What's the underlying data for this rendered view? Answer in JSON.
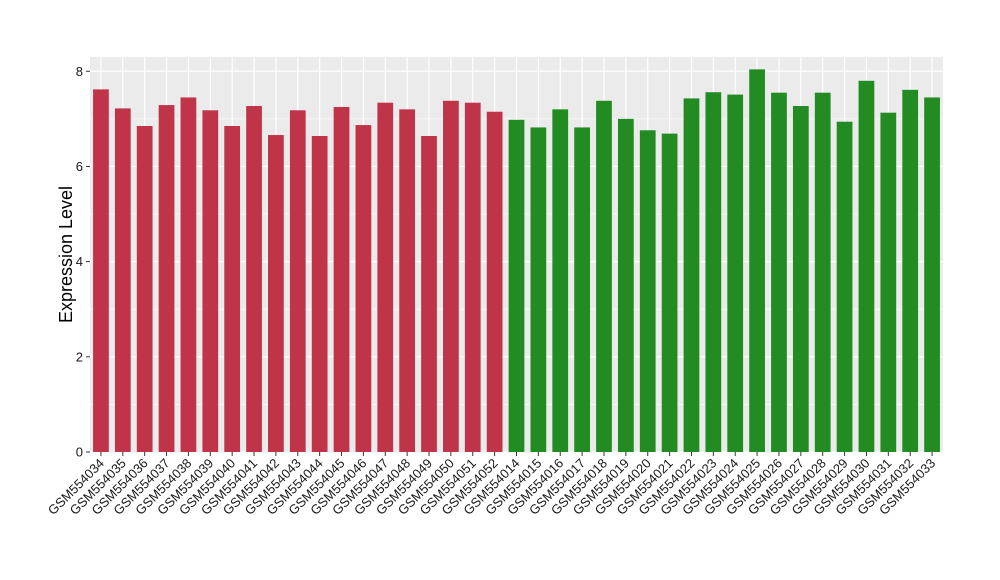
{
  "chart_data": {
    "type": "bar",
    "ylabel": "Expression Level",
    "xlabel": "",
    "ylim": [
      0,
      8.3
    ],
    "yticks": [
      0,
      2,
      4,
      6,
      8
    ],
    "grid": true,
    "legend": "none",
    "background": "#ebebeb",
    "group_colors": {
      "red": "#c0344a",
      "green": "#228b22"
    },
    "categories": [
      "GSM554034",
      "GSM554035",
      "GSM554036",
      "GSM554037",
      "GSM554038",
      "GSM554039",
      "GSM554040",
      "GSM554041",
      "GSM554042",
      "GSM554043",
      "GSM554044",
      "GSM554045",
      "GSM554046",
      "GSM554047",
      "GSM554048",
      "GSM554049",
      "GSM554050",
      "GSM554051",
      "GSM554052",
      "GSM554014",
      "GSM554015",
      "GSM554016",
      "GSM554017",
      "GSM554018",
      "GSM554019",
      "GSM554020",
      "GSM554021",
      "GSM554022",
      "GSM554023",
      "GSM554024",
      "GSM554025",
      "GSM554026",
      "GSM554027",
      "GSM554028",
      "GSM554029",
      "GSM554030",
      "GSM554031",
      "GSM554032",
      "GSM554033"
    ],
    "values": [
      7.62,
      7.22,
      6.85,
      7.29,
      7.45,
      7.18,
      6.85,
      7.27,
      6.66,
      7.18,
      6.64,
      7.25,
      6.87,
      7.34,
      7.2,
      6.64,
      7.38,
      7.34,
      7.15,
      6.98,
      6.82,
      7.2,
      6.82,
      7.38,
      7.0,
      6.76,
      6.69,
      7.43,
      7.56,
      7.51,
      8.04,
      7.55,
      7.27,
      7.55,
      6.94,
      7.8,
      7.13,
      7.61,
      7.45
    ],
    "groups": [
      "red",
      "red",
      "red",
      "red",
      "red",
      "red",
      "red",
      "red",
      "red",
      "red",
      "red",
      "red",
      "red",
      "red",
      "red",
      "red",
      "red",
      "red",
      "red",
      "green",
      "green",
      "green",
      "green",
      "green",
      "green",
      "green",
      "green",
      "green",
      "green",
      "green",
      "green",
      "green",
      "green",
      "green",
      "green",
      "green",
      "green",
      "green",
      "green"
    ]
  }
}
